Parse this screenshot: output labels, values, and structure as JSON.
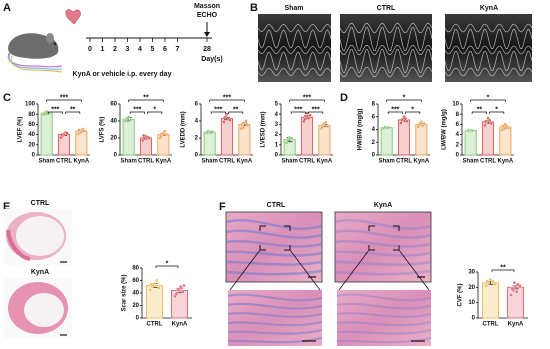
{
  "panels": [
    "A",
    "B",
    "C",
    "D",
    "E",
    "F"
  ],
  "protocol": {
    "days": [
      0,
      1,
      2,
      3,
      4,
      5,
      6,
      7,
      28
    ],
    "endpoints": [
      "Masson",
      "ECHO"
    ],
    "axis_label": "Day(s)",
    "treatment": "KynA or vehicle i.p. every day"
  },
  "echo": {
    "labels": [
      "Sham",
      "CTRL",
      "KynA"
    ]
  },
  "histology_e": {
    "labels": [
      "CTRL",
      "KynA"
    ]
  },
  "histology_f": {
    "labels": [
      "CTRL",
      "KynA"
    ]
  },
  "chart_data": [
    {
      "type": "bar",
      "ylabel": "LVEF (%)",
      "categories": [
        "Sham",
        "CTRL",
        "KynA"
      ],
      "values": [
        82,
        40,
        47
      ],
      "errors": [
        2,
        1.5,
        1.2
      ],
      "points": [
        [
          79,
          83,
          85,
          81
        ],
        [
          34,
          38,
          41,
          44,
          43,
          40
        ],
        [
          42,
          45,
          48,
          51,
          47,
          49,
          44
        ]
      ],
      "colors": [
        "#8cc97a",
        "#e06060",
        "#efa45a"
      ],
      "ylim": [
        0,
        100
      ],
      "yticks": [
        0,
        20,
        40,
        60,
        80,
        100
      ],
      "comparisons": [
        {
          "groups": [
            "Sham",
            "KynA"
          ],
          "label": "***"
        },
        {
          "groups": [
            "Sham",
            "CTRL"
          ],
          "label": "***"
        },
        {
          "groups": [
            "CTRL",
            "KynA"
          ],
          "label": "**"
        }
      ]
    },
    {
      "type": "bar",
      "ylabel": "LVFS (%)",
      "categories": [
        "Sham",
        "CTRL",
        "KynA"
      ],
      "values": [
        42,
        20,
        24
      ],
      "errors": [
        2,
        1,
        1
      ],
      "points": [
        [
          40,
          43,
          45,
          41
        ],
        [
          17,
          19,
          22,
          21,
          20,
          23
        ],
        [
          20,
          23,
          26,
          28,
          24,
          22,
          25
        ]
      ],
      "colors": [
        "#8cc97a",
        "#e06060",
        "#efa45a"
      ],
      "ylim": [
        0,
        60
      ],
      "yticks": [
        0,
        20,
        40,
        60
      ],
      "comparisons": [
        {
          "groups": [
            "Sham",
            "KynA"
          ],
          "label": "**"
        },
        {
          "groups": [
            "Sham",
            "CTRL"
          ],
          "label": "***"
        },
        {
          "groups": [
            "CTRL",
            "KynA"
          ],
          "label": "*"
        }
      ]
    },
    {
      "type": "bar",
      "ylabel": "LVEDD (mm)",
      "categories": [
        "Sham",
        "CTRL",
        "KynA"
      ],
      "values": [
        2.7,
        4.3,
        3.6
      ],
      "errors": [
        0.1,
        0.15,
        0.15
      ],
      "points": [
        [
          2.6,
          2.8,
          2.7,
          2.6
        ],
        [
          3.9,
          4.5,
          4.8,
          4.2,
          4.1,
          4.4
        ],
        [
          3.1,
          3.4,
          3.8,
          4.0,
          3.5,
          3.6,
          3.2
        ]
      ],
      "colors": [
        "#8cc97a",
        "#e06060",
        "#efa45a"
      ],
      "ylim": [
        0,
        6
      ],
      "yticks": [
        0,
        2,
        4,
        6
      ],
      "comparisons": [
        {
          "groups": [
            "Sham",
            "KynA"
          ],
          "label": "***"
        },
        {
          "groups": [
            "Sham",
            "CTRL"
          ],
          "label": "***"
        },
        {
          "groups": [
            "CTRL",
            "KynA"
          ],
          "label": "**"
        }
      ]
    },
    {
      "type": "bar",
      "ylabel": "LVESD (mm)",
      "categories": [
        "Sham",
        "CTRL",
        "KynA"
      ],
      "values": [
        1.5,
        3.7,
        2.9
      ],
      "errors": [
        0.2,
        0.15,
        0.1
      ],
      "points": [
        [
          1.2,
          1.5,
          1.7,
          1.6
        ],
        [
          3.3,
          3.8,
          4.1,
          3.6,
          3.9,
          3.5
        ],
        [
          2.6,
          2.9,
          3.1,
          3.2,
          2.8,
          2.7,
          3.0
        ]
      ],
      "colors": [
        "#8cc97a",
        "#e06060",
        "#efa45a"
      ],
      "ylim": [
        0,
        5
      ],
      "yticks": [
        0,
        1,
        2,
        3,
        4,
        5
      ],
      "comparisons": [
        {
          "groups": [
            "Sham",
            "KynA"
          ],
          "label": "***"
        },
        {
          "groups": [
            "Sham",
            "CTRL"
          ],
          "label": "***"
        },
        {
          "groups": [
            "CTRL",
            "KynA"
          ],
          "label": "***"
        }
      ]
    },
    {
      "type": "bar",
      "ylabel": "HW/BW (mg/g)",
      "categories": [
        "Sham",
        "CTRL",
        "KynA"
      ],
      "values": [
        4.3,
        5.5,
        4.8
      ],
      "errors": [
        0.1,
        0.2,
        0.15
      ],
      "points": [
        [
          4.2,
          4.4,
          4.3,
          4.3
        ],
        [
          5.0,
          5.4,
          6.0,
          5.7,
          5.3,
          5.5
        ],
        [
          4.4,
          4.8,
          5.2,
          4.6,
          4.9,
          4.7,
          5.0
        ]
      ],
      "colors": [
        "#8cc97a",
        "#e06060",
        "#efa45a"
      ],
      "ylim": [
        0,
        8
      ],
      "yticks": [
        0,
        2,
        4,
        6,
        8
      ],
      "comparisons": [
        {
          "groups": [
            "Sham",
            "KynA"
          ],
          "label": "*"
        },
        {
          "groups": [
            "Sham",
            "CTRL"
          ],
          "label": "***"
        },
        {
          "groups": [
            "CTRL",
            "KynA"
          ],
          "label": "*"
        }
      ]
    },
    {
      "type": "bar",
      "ylabel": "LW/BW (mg/g)",
      "categories": [
        "Sham",
        "CTRL",
        "KynA"
      ],
      "values": [
        4.8,
        6.5,
        5.5
      ],
      "errors": [
        0.1,
        0.25,
        0.2
      ],
      "points": [
        [
          4.7,
          4.9,
          4.8,
          4.8
        ],
        [
          5.8,
          6.5,
          7.2,
          6.8,
          6.2,
          6.6
        ],
        [
          4.9,
          5.4,
          6.0,
          5.6,
          5.3,
          5.7,
          5.2
        ]
      ],
      "colors": [
        "#8cc97a",
        "#e06060",
        "#efa45a"
      ],
      "ylim": [
        0,
        10
      ],
      "yticks": [
        0,
        2,
        4,
        6,
        8,
        10
      ],
      "comparisons": [
        {
          "groups": [
            "Sham",
            "KynA"
          ],
          "label": "*"
        },
        {
          "groups": [
            "Sham",
            "CTRL"
          ],
          "label": "**"
        },
        {
          "groups": [
            "CTRL",
            "KynA"
          ],
          "label": "*"
        }
      ]
    },
    {
      "type": "bar",
      "ylabel": "Scar size (%)",
      "categories": [
        "CTRL",
        "KynA"
      ],
      "values": [
        52,
        44
      ],
      "errors": [
        3,
        3
      ],
      "points": [
        [
          45,
          50,
          55,
          60,
          48,
          54,
          52
        ],
        [
          35,
          40,
          44,
          48,
          52,
          38,
          46,
          50,
          42
        ]
      ],
      "colors": [
        "#f0c060",
        "#e0707a"
      ],
      "ylim": [
        0,
        80
      ],
      "yticks": [
        0,
        20,
        40,
        60,
        80
      ],
      "comparisons": [
        {
          "groups": [
            "CTRL",
            "KynA"
          ],
          "label": "*"
        }
      ]
    },
    {
      "type": "bar",
      "ylabel": "CVF (%)",
      "categories": [
        "CTRL",
        "KynA"
      ],
      "values": [
        23,
        20
      ],
      "errors": [
        1,
        1
      ],
      "points": [
        [
          21,
          23,
          25,
          24,
          22,
          24
        ],
        [
          15,
          18,
          20,
          22,
          21,
          19,
          23,
          17
        ]
      ],
      "colors": [
        "#f0c060",
        "#e0707a"
      ],
      "ylim": [
        0,
        30
      ],
      "yticks": [
        0,
        10,
        20,
        30
      ],
      "comparisons": [
        {
          "groups": [
            "CTRL",
            "KynA"
          ],
          "label": "**"
        }
      ]
    }
  ]
}
